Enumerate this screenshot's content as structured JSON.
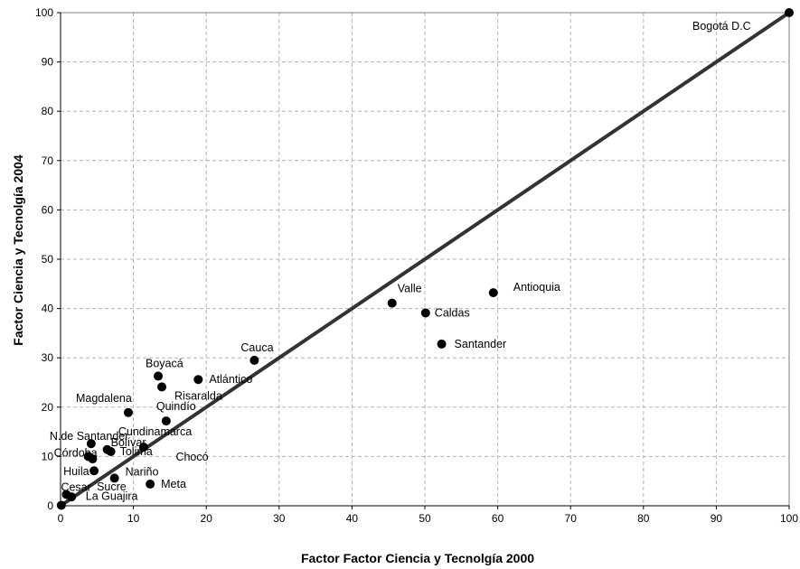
{
  "chart_data": {
    "type": "scatter",
    "title": "",
    "xlabel": "Factor Factor Ciencia y Tecnolgía  2000",
    "ylabel": "Factor Ciencia y Tecnolgía 2004",
    "xlim": [
      0,
      100
    ],
    "ylim": [
      0,
      100
    ],
    "x_ticks": [
      0,
      10,
      20,
      30,
      40,
      50,
      60,
      70,
      80,
      90,
      100
    ],
    "y_ticks": [
      0,
      10,
      20,
      30,
      40,
      50,
      60,
      70,
      80,
      90,
      100
    ],
    "grid": true,
    "reference_line": {
      "from": [
        0,
        0
      ],
      "to": [
        100,
        100
      ]
    },
    "colors": {
      "points": "#000000",
      "line": "#333333",
      "grid": "#b3b3b3",
      "frame": "#808080"
    },
    "points": [
      {
        "label": "Bogotá D.C",
        "x": 100,
        "y": 100
      },
      {
        "label": "Antioquia",
        "x": 59.4,
        "y": 43.2
      },
      {
        "label": "Valle",
        "x": 45.5,
        "y": 41.1
      },
      {
        "label": "Caldas",
        "x": 50.1,
        "y": 39.1
      },
      {
        "label": "Santander",
        "x": 52.3,
        "y": 32.8
      },
      {
        "label": "Cauca",
        "x": 26.6,
        "y": 29.5
      },
      {
        "label": "Boyacá",
        "x": 13.4,
        "y": 26.3
      },
      {
        "label": "Atlántico",
        "x": 18.9,
        "y": 25.6
      },
      {
        "label": "Risaralda",
        "x": 13.9,
        "y": 24.1
      },
      {
        "label": "Magdalena",
        "x": 9.3,
        "y": 18.9
      },
      {
        "label": "Quindío",
        "x": 14.5,
        "y": 17.2
      },
      {
        "label": "N.de Santander",
        "x": 4.2,
        "y": 12.6
      },
      {
        "label": "Cundinamarca",
        "x": 11.4,
        "y": 11.9
      },
      {
        "label": "Bolívar",
        "x": 6.4,
        "y": 11.4
      },
      {
        "label": "Tolima",
        "x": 6.9,
        "y": 11.0
      },
      {
        "label": "Córdoba",
        "x": 3.8,
        "y": 10.0
      },
      {
        "label": "Chocó",
        "x": 4.4,
        "y": 9.5
      },
      {
        "label": "Huila",
        "x": 4.6,
        "y": 7.1
      },
      {
        "label": "Nariño",
        "x": 7.4,
        "y": 5.6
      },
      {
        "label": "Meta",
        "x": 12.3,
        "y": 4.4
      },
      {
        "label": "Cesar",
        "x": 0.8,
        "y": 2.3
      },
      {
        "label": "Sucre",
        "x": 1.5,
        "y": 1.8
      },
      {
        "label": "La Guajira",
        "x": 0.1,
        "y": 0.1
      }
    ]
  }
}
